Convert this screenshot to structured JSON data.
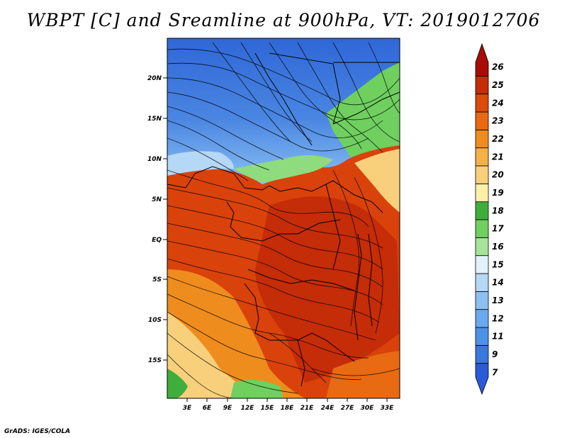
{
  "title": "WBPT [C] and Sreamline at 900hPa, VT: 2019012706",
  "credit": "GrADS: IGES/COLA",
  "lat_labels": [
    "20N",
    "15N",
    "10N",
    "5N",
    "EQ",
    "5S",
    "10S",
    "15S"
  ],
  "lon_labels": [
    "3E",
    "6E",
    "9E",
    "12E",
    "15E",
    "18E",
    "21E",
    "24E",
    "27E",
    "30E",
    "33E"
  ],
  "colorbar": {
    "labels": [
      "7",
      "9",
      "11",
      "12",
      "13",
      "14",
      "15",
      "16",
      "17",
      "18",
      "19",
      "20",
      "21",
      "22",
      "23",
      "24",
      "25",
      "26"
    ],
    "colors": [
      "#2a5bd7",
      "#3c77e0",
      "#4e92e6",
      "#6aa9ee",
      "#8cc0f2",
      "#b4d8f6",
      "#e0f2fa",
      "#a6e49a",
      "#6fcf5f",
      "#3fae3c",
      "#fff0a8",
      "#f8d07c",
      "#f4b148",
      "#ef8c1e",
      "#e86a12",
      "#dc4a0c",
      "#c52c08",
      "#a80d05"
    ],
    "fill_color": "#b4d8f6"
  },
  "map_colors": {
    "north_blue": "#3a77db",
    "sahel_light": "#8cc0f2",
    "green_band": "#8edc7e",
    "equatorial_red": "#d9420b",
    "central_dark": "#c52c08",
    "south_orange": "#ef8c1e",
    "southwest_yellow": "#f8d07c",
    "southwest_green": "#3fae3c"
  }
}
